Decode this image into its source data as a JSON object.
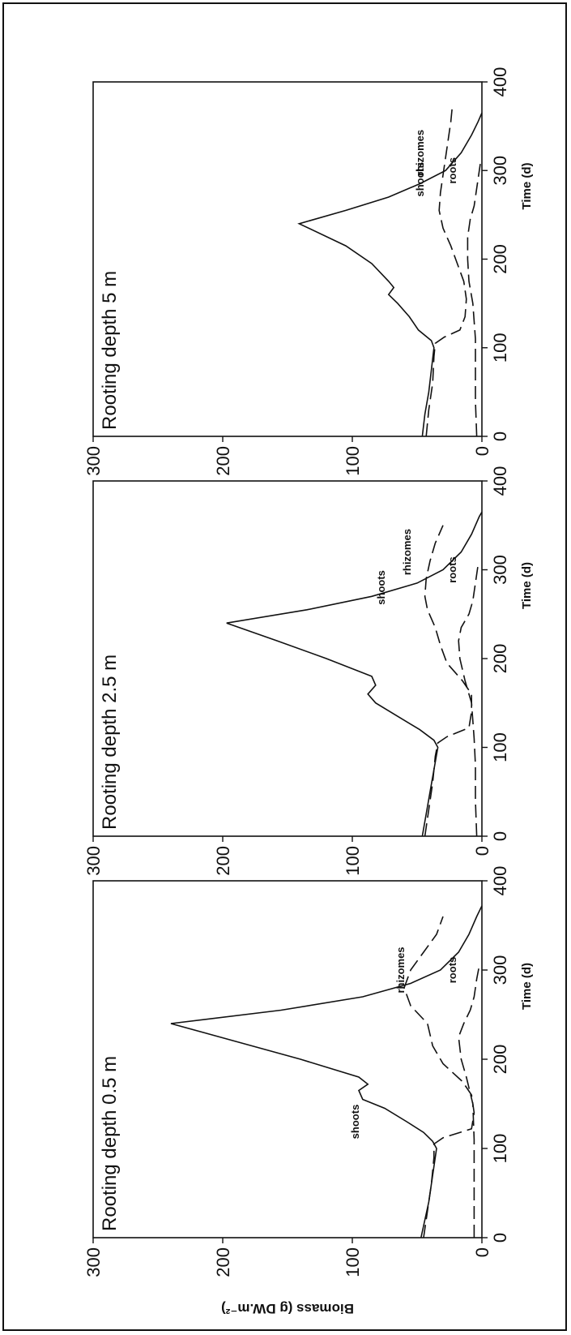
{
  "y_axis_label": "Biomass (g DW.m⁻²)",
  "x_axis_label": "Time (d)",
  "chart_data": [
    {
      "type": "line",
      "title": "Rooting depth 0.5 m",
      "xlabel": "Time (d)",
      "ylabel": "Biomass (g DW.m⁻²)",
      "xlim": [
        0,
        400
      ],
      "ylim": [
        0,
        300
      ],
      "x_ticks": [
        0,
        100,
        200,
        300,
        400
      ],
      "y_ticks": [
        0,
        100,
        200,
        300
      ],
      "series": [
        {
          "name": "shoots",
          "style": "solid",
          "points": [
            [
              0,
              47
            ],
            [
              20,
              44
            ],
            [
              40,
              41
            ],
            [
              60,
              39
            ],
            [
              80,
              37
            ],
            [
              100,
              35
            ],
            [
              108,
              38
            ],
            [
              118,
              45
            ],
            [
              130,
              58
            ],
            [
              145,
              75
            ],
            [
              155,
              92
            ],
            [
              165,
              95
            ],
            [
              172,
              88
            ],
            [
              180,
              95
            ],
            [
              200,
              140
            ],
            [
              220,
              190
            ],
            [
              240,
              240
            ],
            [
              255,
              155
            ],
            [
              270,
              92
            ],
            [
              285,
              55
            ],
            [
              300,
              32
            ],
            [
              320,
              18
            ],
            [
              340,
              10
            ],
            [
              360,
              4
            ],
            [
              372,
              0
            ]
          ]
        },
        {
          "name": "rhizomes",
          "style": "dashed",
          "points": [
            [
              0,
              45
            ],
            [
              30,
              42
            ],
            [
              60,
              39
            ],
            [
              90,
              37
            ],
            [
              105,
              37
            ],
            [
              112,
              30
            ],
            [
              122,
              8
            ],
            [
              140,
              6
            ],
            [
              160,
              8
            ],
            [
              175,
              15
            ],
            [
              195,
              30
            ],
            [
              215,
              38
            ],
            [
              240,
              42
            ],
            [
              260,
              55
            ],
            [
              280,
              60
            ],
            [
              300,
              55
            ],
            [
              320,
              45
            ],
            [
              340,
              35
            ],
            [
              360,
              30
            ]
          ]
        },
        {
          "name": "roots",
          "style": "dashed",
          "points": [
            [
              0,
              6
            ],
            [
              40,
              6
            ],
            [
              80,
              6
            ],
            [
              110,
              6
            ],
            [
              150,
              7
            ],
            [
              180,
              12
            ],
            [
              200,
              16
            ],
            [
              225,
              18
            ],
            [
              240,
              14
            ],
            [
              255,
              9
            ],
            [
              270,
              6
            ],
            [
              290,
              4
            ],
            [
              305,
              2
            ]
          ]
        }
      ]
    },
    {
      "type": "line",
      "title": "Rooting depth 2.5 m",
      "xlabel": "Time (d)",
      "ylabel": "Biomass (g DW.m⁻²)",
      "xlim": [
        0,
        400
      ],
      "ylim": [
        0,
        300
      ],
      "x_ticks": [
        0,
        100,
        200,
        300,
        400
      ],
      "y_ticks": [
        0,
        100,
        200,
        300
      ],
      "series": [
        {
          "name": "shoots",
          "style": "solid",
          "points": [
            [
              0,
              46
            ],
            [
              25,
              43
            ],
            [
              50,
              40
            ],
            [
              75,
              37
            ],
            [
              100,
              34
            ],
            [
              108,
              37
            ],
            [
              120,
              48
            ],
            [
              135,
              65
            ],
            [
              150,
              82
            ],
            [
              160,
              88
            ],
            [
              170,
              82
            ],
            [
              180,
              85
            ],
            [
              200,
              120
            ],
            [
              220,
              158
            ],
            [
              240,
              197
            ],
            [
              255,
              135
            ],
            [
              270,
              85
            ],
            [
              285,
              50
            ],
            [
              300,
              30
            ],
            [
              320,
              16
            ],
            [
              340,
              8
            ],
            [
              360,
              2
            ],
            [
              365,
              0
            ]
          ]
        },
        {
          "name": "rhizomes",
          "style": "dashed",
          "points": [
            [
              0,
              44
            ],
            [
              30,
              41
            ],
            [
              60,
              38
            ],
            [
              90,
              36
            ],
            [
              105,
              34
            ],
            [
              112,
              27
            ],
            [
              122,
              10
            ],
            [
              140,
              8
            ],
            [
              160,
              8
            ],
            [
              175,
              15
            ],
            [
              195,
              27
            ],
            [
              215,
              32
            ],
            [
              235,
              36
            ],
            [
              255,
              42
            ],
            [
              270,
              44
            ],
            [
              290,
              43
            ],
            [
              310,
              40
            ],
            [
              330,
              36
            ],
            [
              350,
              30
            ]
          ]
        },
        {
          "name": "roots",
          "style": "dashed",
          "points": [
            [
              0,
              4
            ],
            [
              40,
              5
            ],
            [
              80,
              5
            ],
            [
              110,
              6
            ],
            [
              150,
              8
            ],
            [
              175,
              13
            ],
            [
              200,
              17
            ],
            [
              220,
              18
            ],
            [
              235,
              16
            ],
            [
              250,
              10
            ],
            [
              265,
              7
            ],
            [
              285,
              5
            ],
            [
              305,
              3
            ]
          ]
        }
      ]
    },
    {
      "type": "line",
      "title": "Rooting depth 5 m",
      "xlabel": "Time (d)",
      "ylabel": "",
      "xlim": [
        0,
        400
      ],
      "ylim": [
        0,
        300
      ],
      "x_ticks": [
        0,
        100,
        200,
        300,
        400
      ],
      "y_ticks": [
        0,
        100,
        200,
        300
      ],
      "series": [
        {
          "name": "shoots",
          "style": "solid",
          "points": [
            [
              0,
              46
            ],
            [
              25,
              44
            ],
            [
              50,
              41
            ],
            [
              75,
              39
            ],
            [
              100,
              37
            ],
            [
              108,
              39
            ],
            [
              120,
              49
            ],
            [
              135,
              56
            ],
            [
              150,
              65
            ],
            [
              160,
              72
            ],
            [
              168,
              68
            ],
            [
              175,
              72
            ],
            [
              195,
              85
            ],
            [
              215,
              105
            ],
            [
              240,
              141
            ],
            [
              255,
              105
            ],
            [
              270,
              72
            ],
            [
              285,
              48
            ],
            [
              300,
              28
            ],
            [
              320,
              16
            ],
            [
              340,
              8
            ],
            [
              355,
              3
            ],
            [
              365,
              0
            ]
          ]
        },
        {
          "name": "rhizomes",
          "style": "dashed",
          "points": [
            [
              0,
              43
            ],
            [
              30,
              41
            ],
            [
              60,
              38
            ],
            [
              90,
              37
            ],
            [
              105,
              36
            ],
            [
              112,
              29
            ],
            [
              120,
              17
            ],
            [
              135,
              13
            ],
            [
              155,
              12
            ],
            [
              175,
              14
            ],
            [
              195,
              19
            ],
            [
              215,
              24
            ],
            [
              235,
              30
            ],
            [
              255,
              33
            ],
            [
              275,
              32
            ],
            [
              295,
              30
            ],
            [
              315,
              28
            ],
            [
              335,
              26
            ],
            [
              355,
              24
            ],
            [
              370,
              23
            ]
          ]
        },
        {
          "name": "roots",
          "style": "dashed",
          "points": [
            [
              0,
              4
            ],
            [
              40,
              5
            ],
            [
              80,
              5
            ],
            [
              110,
              5
            ],
            [
              150,
              7
            ],
            [
              175,
              10
            ],
            [
              200,
              11
            ],
            [
              225,
              11
            ],
            [
              245,
              9
            ],
            [
              260,
              6
            ],
            [
              280,
              4
            ],
            [
              300,
              2
            ],
            [
              310,
              1
            ]
          ]
        }
      ]
    }
  ]
}
